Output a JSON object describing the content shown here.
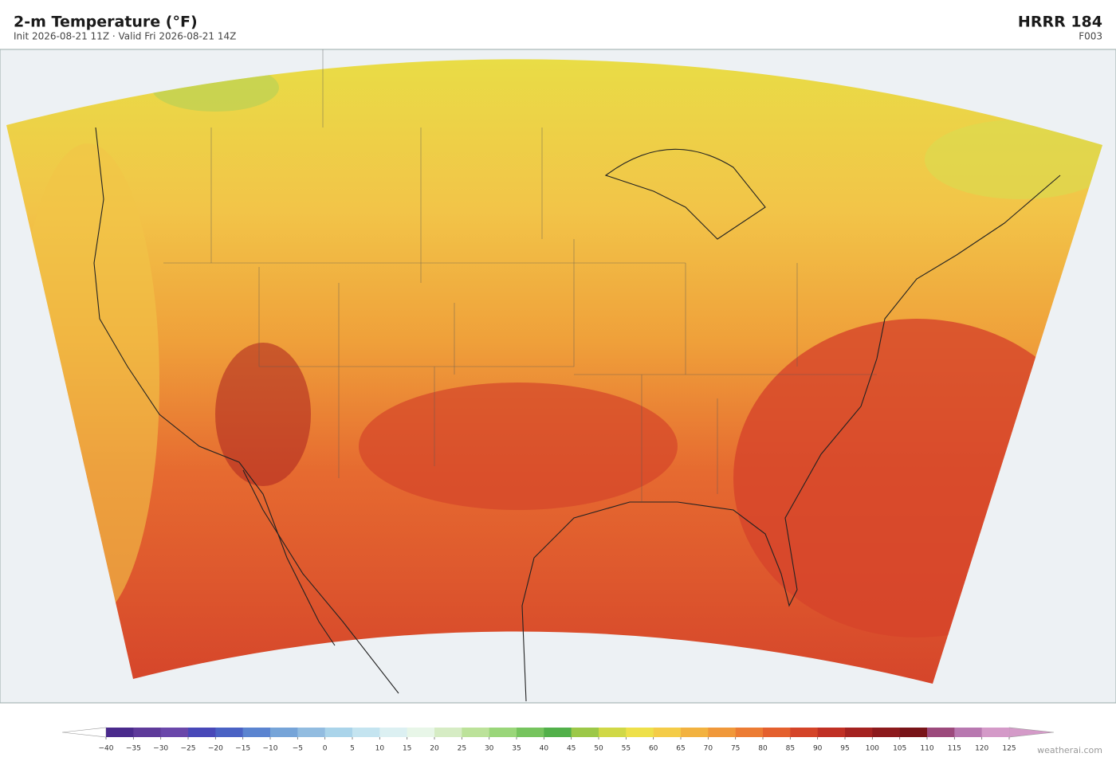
{
  "header": {
    "title": "2-m Temperature  (°F)",
    "subtitle": "Init 2026-08-21 11Z   ·   Valid Fri 2026-08-21 14Z",
    "model": "HRRR  184",
    "forecast_hour": "F003"
  },
  "colorbar": {
    "ticks": [
      {
        "value": -40,
        "label": "−40"
      },
      {
        "value": -35,
        "label": "−35"
      },
      {
        "value": -30,
        "label": "−30"
      },
      {
        "value": -25,
        "label": "−25"
      },
      {
        "value": -20,
        "label": "−20"
      },
      {
        "value": -15,
        "label": "−15"
      },
      {
        "value": -10,
        "label": "−10"
      },
      {
        "value": -5,
        "label": "−5"
      },
      0,
      5,
      10,
      15,
      20,
      25,
      30,
      35,
      40,
      45,
      50,
      55,
      60,
      65,
      70,
      75,
      80,
      85,
      90,
      95,
      100,
      105,
      110,
      115,
      120,
      125
    ],
    "colors": [
      "#4a2a8c",
      "#5e3a9a",
      "#6a47aa",
      "#4848b8",
      "#4a62c4",
      "#5b84d0",
      "#76a4d8",
      "#92bce0",
      "#aad4ea",
      "#c4e4f0",
      "#dcf0f2",
      "#e8f6e8",
      "#d6ecc4",
      "#bce29a",
      "#9ad67a",
      "#76c45e",
      "#52b04a",
      "#9cc848",
      "#d0d846",
      "#eee04a",
      "#f4cc48",
      "#f2b240",
      "#f0983a",
      "#ec7c34",
      "#e4602e",
      "#d44428",
      "#c03024",
      "#a42220",
      "#8c1a1c",
      "#781418",
      "#9c4a7c",
      "#b878b0",
      "#d49ac8"
    ],
    "under_color": "#ffffff",
    "over_color": "#d49ac8"
  },
  "footer": {
    "credit": "weatherai.com"
  }
}
